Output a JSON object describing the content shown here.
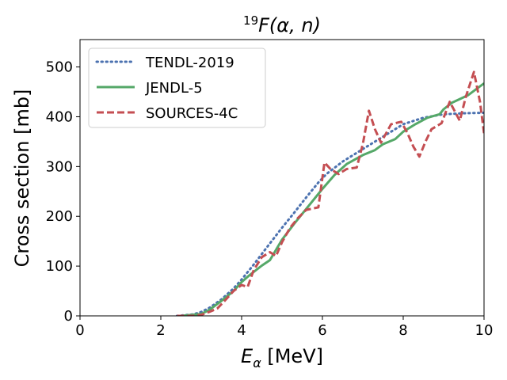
{
  "chart_data": {
    "type": "line",
    "title": {
      "superscript": "19",
      "main": "F(α, n)"
    },
    "xlabel": {
      "symbol": "E",
      "subscript": "α",
      "unit": " [MeV]"
    },
    "ylabel": "Cross section [mb]",
    "xlim": [
      0,
      10
    ],
    "ylim": [
      0,
      555
    ],
    "xticks": [
      0,
      2,
      4,
      6,
      8,
      10
    ],
    "yticks": [
      0,
      100,
      200,
      300,
      400,
      500
    ],
    "xtick_labels": [
      "0",
      "2",
      "4",
      "6",
      "8",
      "10"
    ],
    "ytick_labels": [
      "0",
      "100",
      "200",
      "300",
      "400",
      "500"
    ],
    "grid": false,
    "legend_position": "top-left",
    "series": [
      {
        "name": "TENDL-2019",
        "color": "#4c72b0",
        "style": "dotted",
        "x": [
          2.4,
          2.8,
          3.0,
          3.2,
          3.5,
          3.8,
          4.0,
          4.3,
          4.6,
          5.0,
          5.3,
          5.6,
          5.9,
          6.1,
          6.5,
          7.0,
          7.5,
          8.0,
          8.5,
          9.0,
          9.5,
          10.0
        ],
        "y": [
          0,
          3,
          8,
          16,
          33,
          55,
          73,
          103,
          135,
          177,
          207,
          238,
          268,
          285,
          310,
          335,
          360,
          385,
          398,
          405,
          407,
          408
        ]
      },
      {
        "name": "JENDL-5",
        "color": "#55a868",
        "style": "solid",
        "x": [
          2.5,
          3.0,
          3.2,
          3.5,
          3.8,
          4.0,
          4.2,
          4.5,
          4.7,
          5.0,
          5.3,
          5.6,
          6.0,
          6.3,
          6.6,
          7.0,
          7.3,
          7.5,
          7.8,
          8.0,
          8.3,
          8.6,
          8.9,
          9.0,
          9.2,
          9.6,
          10.0
        ],
        "y": [
          0,
          4,
          12,
          30,
          50,
          68,
          82,
          101,
          112,
          153,
          185,
          215,
          255,
          283,
          305,
          323,
          333,
          345,
          355,
          370,
          385,
          398,
          405,
          415,
          428,
          443,
          467
        ]
      },
      {
        "name": "SOURCES-4C",
        "color": "#c44e52",
        "style": "dashed",
        "x": [
          2.4,
          2.8,
          3.0,
          3.2,
          3.4,
          3.6,
          3.8,
          4.0,
          4.15,
          4.3,
          4.5,
          4.7,
          4.85,
          5.0,
          5.2,
          5.4,
          5.6,
          5.9,
          6.05,
          6.2,
          6.4,
          6.6,
          6.85,
          7.0,
          7.15,
          7.3,
          7.45,
          7.7,
          7.95,
          8.1,
          8.25,
          8.4,
          8.55,
          8.7,
          8.95,
          9.15,
          9.4,
          9.55,
          9.75,
          9.9,
          10.0
        ],
        "y": [
          0,
          0,
          2,
          8,
          15,
          32,
          50,
          62,
          58,
          92,
          118,
          128,
          120,
          148,
          177,
          197,
          213,
          218,
          308,
          295,
          285,
          295,
          298,
          345,
          412,
          375,
          348,
          385,
          390,
          368,
          340,
          320,
          350,
          375,
          387,
          430,
          392,
          440,
          490,
          430,
          367
        ]
      }
    ]
  }
}
